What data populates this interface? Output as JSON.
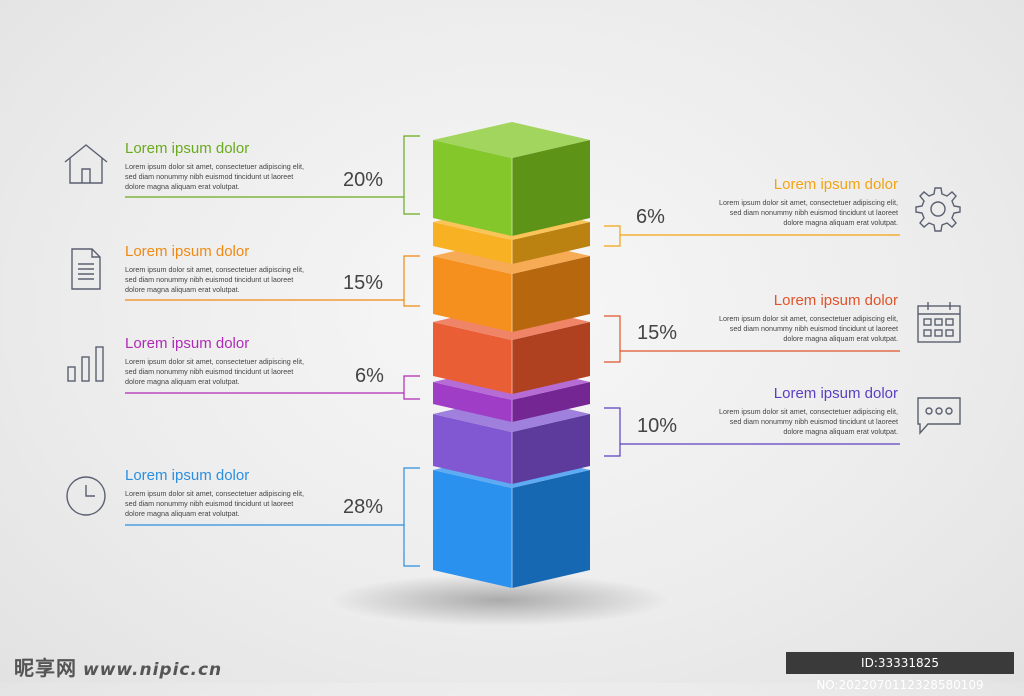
{
  "left_items": [
    {
      "title": "Lorem ipsum dolor",
      "desc": "Lorem ipsum dolor sit amet, consectetuer adipiscing elit,\nsed diam nonummy nibh euismod tincidunt ut laoreet\ndolore magna aliquam erat volutpat.",
      "percent": "20%",
      "color": "#6aaa1e",
      "icon": "house-icon"
    },
    {
      "title": "Lorem ipsum dolor",
      "desc": "Lorem ipsum dolor sit amet, consectetuer adipiscing elit,\nsed diam nonummy nibh euismod tincidunt ut laoreet\ndolore magna aliquam erat volutpat.",
      "percent": "15%",
      "color": "#f08a12",
      "icon": "document-icon"
    },
    {
      "title": "Lorem ipsum dolor",
      "desc": "Lorem ipsum dolor sit amet, consectetuer adipiscing elit,\nsed diam nonummy nibh euismod tincidunt ut laoreet\ndolore magna aliquam erat volutpat.",
      "percent": "6%",
      "color": "#b02ab8",
      "icon": "bar-chart-icon"
    },
    {
      "title": "Lorem ipsum dolor",
      "desc": "Lorem ipsum dolor sit amet, consectetuer adipiscing elit,\nsed diam nonummy nibh euismod tincidunt ut laoreet\ndolore magna aliquam erat volutpat.",
      "percent": "28%",
      "color": "#2b8fe0",
      "icon": "clock-icon"
    }
  ],
  "right_items": [
    {
      "title": "Lorem ipsum dolor",
      "desc": "Lorem ipsum dolor sit amet, consectetuer adipiscing elit,\nsed diam nonummy nibh euismod tincidunt ut laoreet\ndolore magna aliquam erat volutpat.",
      "percent": "6%",
      "color": "#f3a412",
      "icon": "gear-icon"
    },
    {
      "title": "Lorem ipsum dolor",
      "desc": "Lorem ipsum dolor sit amet, consectetuer adipiscing elit,\nsed diam nonummy nibh euismod tincidunt ut laoreet\ndolore magna aliquam erat volutpat.",
      "percent": "15%",
      "color": "#e0542a",
      "icon": "calendar-icon"
    },
    {
      "title": "Lorem ipsum dolor",
      "desc": "Lorem ipsum dolor sit amet, consectetuer adipiscing elit,\nsed diam nonummy nibh euismod tincidunt ut laoreet\ndolore magna aliquam erat volutpat.",
      "percent": "10%",
      "color": "#5b3fc0",
      "icon": "speech-bubble-icon"
    }
  ],
  "stack_segments": [
    {
      "color": "#7cc41f",
      "percent": 20
    },
    {
      "color": "#f9ad18",
      "percent": 6
    },
    {
      "color": "#f48a13",
      "percent": 15
    },
    {
      "color": "#e9552b",
      "percent": 15
    },
    {
      "color": "#9a33c4",
      "percent": 6
    },
    {
      "color": "#7a4fd0",
      "percent": 10
    },
    {
      "color": "#1f8bee",
      "percent": 28
    }
  ],
  "watermark": {
    "site": "昵享网",
    "url": "www.nipic.cn",
    "id": "ID:33331825 NO:20220701123285801​09"
  }
}
